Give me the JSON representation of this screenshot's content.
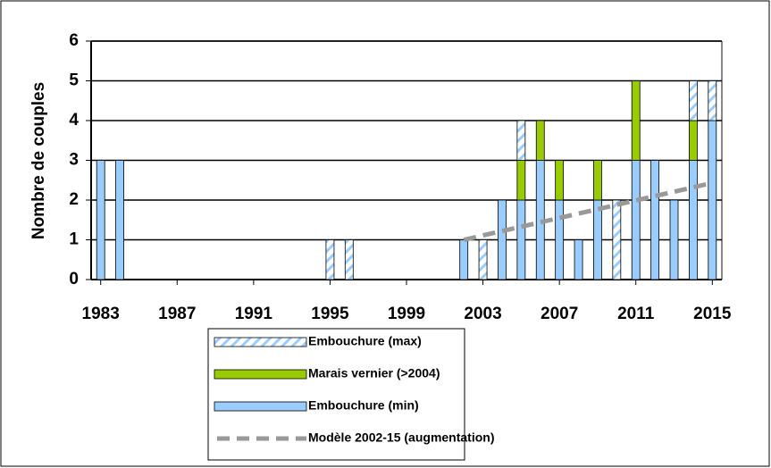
{
  "chart_data": {
    "type": "bar",
    "stacked": true,
    "y_label": "Nombre de couples",
    "categories": [
      "1983",
      null,
      null,
      null,
      "1987",
      null,
      null,
      null,
      "1991",
      null,
      null,
      null,
      "1995",
      null,
      null,
      null,
      "1999",
      null,
      null,
      null,
      "2003",
      null,
      null,
      null,
      "2007",
      null,
      null,
      null,
      "2011",
      null,
      null,
      null,
      "2015"
    ],
    "series": [
      {
        "name": "Embouchure (max)",
        "color": "#99ccff",
        "pattern": "hatch",
        "values": [
          null,
          null,
          null,
          null,
          null,
          null,
          null,
          null,
          null,
          null,
          null,
          null,
          1,
          1,
          null,
          null,
          null,
          null,
          null,
          null,
          1,
          null,
          1,
          null,
          null,
          null,
          null,
          2,
          null,
          null,
          null,
          1,
          1
        ]
      },
      {
        "name": "Marais vernier (>2004)",
        "color": "#99cc00",
        "values": [
          null,
          null,
          null,
          null,
          null,
          null,
          null,
          null,
          null,
          null,
          null,
          null,
          null,
          null,
          null,
          null,
          null,
          null,
          null,
          null,
          null,
          null,
          1,
          1,
          1,
          null,
          1,
          null,
          2,
          null,
          null,
          1,
          null
        ]
      },
      {
        "name": "Embouchure (min)",
        "color": "#99ccff",
        "values": [
          3,
          3,
          null,
          null,
          null,
          null,
          null,
          null,
          null,
          null,
          null,
          null,
          null,
          null,
          null,
          null,
          null,
          null,
          null,
          1,
          null,
          2,
          2,
          3,
          2,
          1,
          2,
          null,
          3,
          3,
          2,
          3,
          4
        ]
      },
      {
        "name": "Modèle 2002-15 (augmentation)",
        "type": "line",
        "color": "#999999",
        "dashed": true,
        "values": [
          null,
          null,
          null,
          null,
          null,
          null,
          null,
          null,
          null,
          null,
          null,
          null,
          null,
          null,
          null,
          null,
          null,
          null,
          null,
          1.0,
          1.11,
          1.22,
          1.33,
          1.44,
          1.55,
          1.66,
          1.77,
          1.88,
          1.99,
          2.1,
          2.21,
          2.32,
          2.43
        ]
      }
    ],
    "ylim": [
      0,
      6
    ],
    "yticks": [
      0,
      1,
      2,
      3,
      4,
      5,
      6
    ],
    "grid": true
  }
}
